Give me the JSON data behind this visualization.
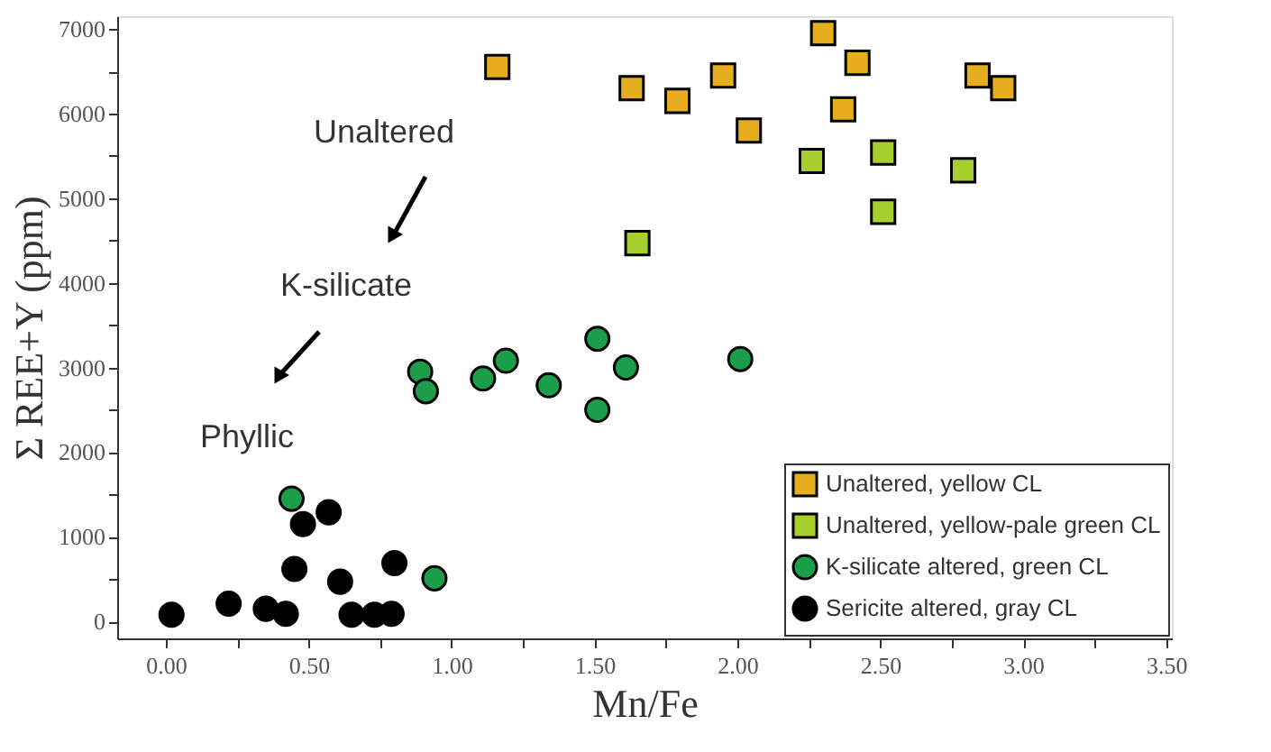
{
  "chart_data": {
    "type": "scatter",
    "xlabel": "Mn/Fe",
    "ylabel": "Σ REE+Y (ppm)",
    "xlim": [
      -0.17,
      3.52
    ],
    "ylim": [
      -200,
      7150
    ],
    "xticks": [
      {
        "value": 0,
        "label": "0.00"
      },
      {
        "value": 0.25,
        "label": null
      },
      {
        "value": 0.5,
        "label": "0.50"
      },
      {
        "value": 0.75,
        "label": null
      },
      {
        "value": 1,
        "label": "1.00"
      },
      {
        "value": 1.25,
        "label": null
      },
      {
        "value": 1.5,
        "label": "1.50"
      },
      {
        "value": 1.75,
        "label": null
      },
      {
        "value": 2,
        "label": "2.00"
      },
      {
        "value": 2.25,
        "label": null
      },
      {
        "value": 2.5,
        "label": "2.50"
      },
      {
        "value": 2.75,
        "label": null
      },
      {
        "value": 3,
        "label": "3.00"
      },
      {
        "value": 3.25,
        "label": null
      },
      {
        "value": 3.5,
        "label": "3.50"
      }
    ],
    "yticks": [
      0,
      {
        "value": 500,
        "label": null
      },
      1000,
      {
        "value": 1500,
        "label": null
      },
      2000,
      {
        "value": 2500,
        "label": null
      },
      3000,
      {
        "value": 3500,
        "label": null
      },
      4000,
      {
        "value": 4500,
        "label": null
      },
      5000,
      {
        "value": 5500,
        "label": null
      },
      6000,
      {
        "value": 6500,
        "label": null
      },
      7000
    ],
    "grid": false,
    "legend": "bottom right",
    "annotations": [
      "Unaltered",
      "K-silicate",
      "Phyllic"
    ],
    "series": [
      {
        "name": "Unaltered, yellow CL",
        "color": "#e6ad1e",
        "marker": "square",
        "x": [
          1.16,
          1.63,
          1.79,
          1.95,
          2.04,
          2.3,
          2.42,
          2.37,
          2.84,
          2.93
        ],
        "values": [
          6550,
          6300,
          6150,
          6450,
          5800,
          6950,
          6600,
          6050,
          6450,
          6300
        ]
      },
      {
        "name": "Unaltered, yellow-pale green CL",
        "color": "#a6cf2e",
        "marker": "square",
        "x": [
          1.65,
          2.26,
          2.51,
          2.51,
          2.79
        ],
        "values": [
          4470,
          5440,
          5540,
          4840,
          5330
        ]
      },
      {
        "name": "K-silicate altered, green CL",
        "color": "#1b9e49",
        "marker": "circle",
        "x": [
          0.89,
          0.91,
          1.11,
          1.19,
          1.34,
          1.51,
          1.61,
          1.51,
          0.44,
          0.94,
          2.01
        ],
        "values": [
          2950,
          2720,
          2870,
          3080,
          2790,
          3340,
          3000,
          2500,
          1450,
          510,
          3100
        ]
      },
      {
        "name": "Sericite altered, gray CL",
        "color": "#000000",
        "marker": "circle",
        "x": [
          0.02,
          0.22,
          0.35,
          0.42,
          0.45,
          0.48,
          0.57,
          0.61,
          0.65,
          0.73,
          0.79,
          0.8
        ],
        "values": [
          80,
          210,
          150,
          90,
          620,
          1150,
          1290,
          470,
          80,
          80,
          90,
          690
        ]
      }
    ]
  }
}
